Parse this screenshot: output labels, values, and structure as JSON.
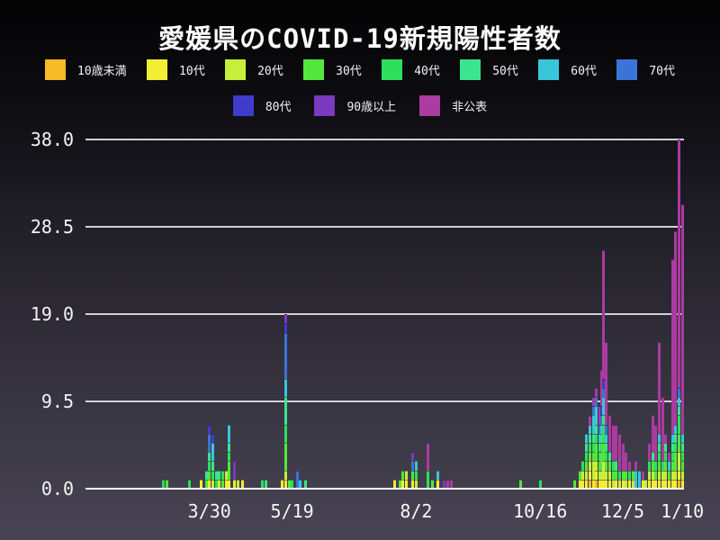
{
  "chart_data": {
    "type": "bar",
    "stacked": true,
    "title": "愛媛県のCOVID-19新規陽性者数",
    "xlabel": "",
    "ylabel": "",
    "grid": true,
    "legend_position": "top",
    "ylim": [
      0,
      38
    ],
    "y_ticks": [
      "0.0",
      "9.5",
      "19.0",
      "28.5",
      "38.0"
    ],
    "x_ticks": [
      {
        "day": 0,
        "label": "3/30"
      },
      {
        "day": 50,
        "label": "5/19"
      },
      {
        "day": 125,
        "label": "8/2"
      },
      {
        "day": 200,
        "label": "10/16"
      },
      {
        "day": 250,
        "label": "12/5"
      },
      {
        "day": 286,
        "label": "1/10"
      }
    ],
    "x_axis_day_range": [
      -75,
      287
    ],
    "age_groups": [
      {
        "label": "10歳未満",
        "color": "#f5bb29"
      },
      {
        "label": "10代",
        "color": "#f2ee35"
      },
      {
        "label": "20代",
        "color": "#c5ef3a"
      },
      {
        "label": "30代",
        "color": "#53e73d"
      },
      {
        "label": "40代",
        "color": "#2edf5d"
      },
      {
        "label": "50代",
        "color": "#3ce48f"
      },
      {
        "label": "60代",
        "color": "#39c6dc"
      },
      {
        "label": "70代",
        "color": "#3c73d6"
      },
      {
        "label": "80代",
        "color": "#3f3bcd"
      },
      {
        "label": "90歳以上",
        "color": "#7b39bd"
      },
      {
        "label": "非公表",
        "color": "#aa3b9f"
      }
    ],
    "legend_rows": [
      [
        0,
        1,
        2,
        3,
        4,
        5,
        6,
        7
      ],
      [
        8,
        9,
        10
      ]
    ],
    "series_order_note": "v arrays follow age_groups order, stacked bottom to top",
    "entries": [
      {
        "day": -28,
        "date": "3/2",
        "v": [
          0,
          0,
          0,
          0,
          1,
          0,
          0,
          0,
          0,
          0,
          0
        ]
      },
      {
        "day": -26,
        "date": "3/4",
        "v": [
          0,
          0,
          0,
          1,
          0,
          0,
          0,
          0,
          0,
          0,
          0
        ]
      },
      {
        "day": -12,
        "date": "3/18",
        "v": [
          0,
          0,
          0,
          0,
          1,
          0,
          0,
          0,
          0,
          0,
          0
        ]
      },
      {
        "day": -5,
        "date": "3/25",
        "v": [
          0,
          1,
          0,
          0,
          0,
          0,
          0,
          0,
          0,
          0,
          0
        ]
      },
      {
        "day": -2,
        "date": "3/28",
        "v": [
          0,
          0,
          0,
          1,
          0,
          1,
          0,
          0,
          0,
          0,
          0
        ]
      },
      {
        "day": 0,
        "date": "3/30",
        "v": [
          0,
          1,
          0,
          1,
          1,
          1,
          0,
          2,
          1,
          0,
          0
        ]
      },
      {
        "day": 2,
        "date": "4/1",
        "v": [
          0,
          0,
          1,
          0,
          1,
          1,
          2,
          0,
          1,
          0,
          0
        ]
      },
      {
        "day": 4,
        "date": "4/3",
        "v": [
          0,
          0,
          0,
          0,
          1,
          1,
          0,
          0,
          0,
          0,
          0
        ]
      },
      {
        "day": 6,
        "date": "4/5",
        "v": [
          0,
          0,
          1,
          0,
          0,
          1,
          0,
          0,
          0,
          0,
          0
        ]
      },
      {
        "day": 8,
        "date": "4/7",
        "v": [
          0,
          0,
          0,
          1,
          1,
          0,
          0,
          0,
          0,
          0,
          0
        ]
      },
      {
        "day": 10,
        "date": "4/9",
        "v": [
          0,
          1,
          1,
          0,
          0,
          0,
          0,
          0,
          0,
          0,
          0
        ]
      },
      {
        "day": 12,
        "date": "4/11",
        "v": [
          0,
          1,
          0,
          2,
          1,
          1,
          2,
          0,
          0,
          0,
          0
        ]
      },
      {
        "day": 15,
        "date": "4/14",
        "v": [
          0,
          1,
          0,
          0,
          0,
          0,
          0,
          0,
          0,
          2,
          0
        ]
      },
      {
        "day": 17,
        "date": "4/16",
        "v": [
          0,
          0,
          1,
          0,
          0,
          0,
          0,
          0,
          0,
          0,
          0
        ]
      },
      {
        "day": 20,
        "date": "4/19",
        "v": [
          0,
          1,
          0,
          0,
          0,
          0,
          0,
          0,
          0,
          0,
          0
        ]
      },
      {
        "day": 32,
        "date": "5/1",
        "v": [
          0,
          0,
          0,
          0,
          1,
          0,
          0,
          0,
          0,
          0,
          0
        ]
      },
      {
        "day": 34,
        "date": "5/3",
        "v": [
          0,
          0,
          0,
          0,
          0,
          1,
          0,
          0,
          0,
          0,
          0
        ]
      },
      {
        "day": 44,
        "date": "5/13",
        "v": [
          0,
          1,
          0,
          0,
          0,
          0,
          0,
          0,
          0,
          0,
          0
        ]
      },
      {
        "day": 46,
        "date": "5/15",
        "v": [
          0,
          1,
          1,
          3,
          2,
          3,
          2,
          5,
          1,
          1,
          0
        ]
      },
      {
        "day": 48,
        "date": "5/17",
        "v": [
          0,
          0,
          0,
          1,
          0,
          0,
          0,
          0,
          0,
          0,
          0
        ]
      },
      {
        "day": 50,
        "date": "5/19",
        "v": [
          0,
          0,
          0,
          0,
          1,
          0,
          0,
          0,
          0,
          0,
          0
        ]
      },
      {
        "day": 53,
        "date": "5/22",
        "v": [
          0,
          0,
          0,
          0,
          0,
          0,
          0,
          2,
          0,
          0,
          0
        ]
      },
      {
        "day": 55,
        "date": "5/24",
        "v": [
          0,
          0,
          0,
          0,
          0,
          0,
          1,
          0,
          0,
          0,
          0
        ]
      },
      {
        "day": 58,
        "date": "5/27",
        "v": [
          0,
          0,
          0,
          0,
          0,
          1,
          0,
          0,
          0,
          0,
          0
        ]
      },
      {
        "day": 112,
        "date": "7/20",
        "v": [
          0,
          1,
          0,
          0,
          0,
          0,
          0,
          0,
          0,
          0,
          0
        ]
      },
      {
        "day": 115,
        "date": "7/23",
        "v": [
          0,
          0,
          0,
          1,
          0,
          0,
          0,
          0,
          0,
          0,
          0
        ]
      },
      {
        "day": 117,
        "date": "7/25",
        "v": [
          0,
          1,
          0,
          1,
          0,
          0,
          0,
          0,
          0,
          0,
          0
        ]
      },
      {
        "day": 119,
        "date": "7/27",
        "v": [
          0,
          1,
          1,
          0,
          0,
          0,
          0,
          0,
          0,
          0,
          0
        ]
      },
      {
        "day": 123,
        "date": "7/31",
        "v": [
          0,
          1,
          0,
          1,
          0,
          0,
          0,
          1,
          0,
          1,
          0
        ]
      },
      {
        "day": 125,
        "date": "8/2",
        "v": [
          0,
          0,
          1,
          0,
          1,
          0,
          1,
          0,
          0,
          0,
          0
        ]
      },
      {
        "day": 132,
        "date": "8/9",
        "v": [
          0,
          0,
          0,
          0,
          2,
          0,
          0,
          0,
          0,
          0,
          3
        ]
      },
      {
        "day": 135,
        "date": "8/12",
        "v": [
          0,
          0,
          0,
          1,
          0,
          0,
          0,
          0,
          0,
          0,
          0
        ]
      },
      {
        "day": 138,
        "date": "8/15",
        "v": [
          0,
          1,
          0,
          0,
          0,
          0,
          1,
          0,
          0,
          0,
          0
        ]
      },
      {
        "day": 142,
        "date": "8/19",
        "v": [
          0,
          0,
          0,
          0,
          0,
          0,
          0,
          0,
          0,
          1,
          0
        ]
      },
      {
        "day": 144,
        "date": "8/21",
        "v": [
          0,
          0,
          0,
          0,
          0,
          0,
          0,
          0,
          0,
          0,
          1
        ]
      },
      {
        "day": 146,
        "date": "8/23",
        "v": [
          0,
          0,
          0,
          0,
          0,
          0,
          0,
          0,
          0,
          0,
          1
        ]
      },
      {
        "day": 188,
        "date": "10/4",
        "v": [
          0,
          0,
          0,
          1,
          0,
          0,
          0,
          0,
          0,
          0,
          0
        ]
      },
      {
        "day": 200,
        "date": "10/16",
        "v": [
          0,
          0,
          0,
          0,
          1,
          0,
          0,
          0,
          0,
          0,
          0
        ]
      },
      {
        "day": 221,
        "date": "11/6",
        "v": [
          0,
          0,
          0,
          1,
          0,
          0,
          0,
          0,
          0,
          0,
          0
        ]
      },
      {
        "day": 224,
        "date": "11/9",
        "v": [
          0,
          1,
          0,
          1,
          0,
          0,
          0,
          0,
          0,
          0,
          0
        ]
      },
      {
        "day": 226,
        "date": "11/11",
        "v": [
          0,
          1,
          1,
          0,
          1,
          0,
          0,
          0,
          0,
          0,
          0
        ]
      },
      {
        "day": 228,
        "date": "11/13",
        "v": [
          0,
          1,
          1,
          1,
          1,
          1,
          1,
          0,
          0,
          0,
          0
        ]
      },
      {
        "day": 230,
        "date": "11/15",
        "v": [
          1,
          1,
          1,
          1,
          1,
          1,
          1,
          0,
          0,
          0,
          1
        ]
      },
      {
        "day": 232,
        "date": "11/17",
        "v": [
          0,
          1,
          2,
          1,
          1,
          1,
          2,
          1,
          0,
          0,
          1
        ]
      },
      {
        "day": 234,
        "date": "11/19",
        "v": [
          1,
          1,
          1,
          2,
          1,
          1,
          2,
          1,
          0,
          0,
          1
        ]
      },
      {
        "day": 236,
        "date": "11/21",
        "v": [
          0,
          1,
          1,
          1,
          1,
          1,
          1,
          1,
          0,
          0,
          2
        ]
      },
      {
        "day": 237,
        "date": "11/22",
        "v": [
          0,
          1,
          1,
          2,
          1,
          1,
          1,
          1,
          1,
          0,
          4
        ]
      },
      {
        "day": 238,
        "date": "11/23",
        "v": [
          0,
          1,
          2,
          2,
          2,
          1,
          2,
          1,
          1,
          0,
          14
        ]
      },
      {
        "day": 240,
        "date": "11/25",
        "v": [
          0,
          1,
          1,
          1,
          1,
          1,
          1,
          1,
          0,
          0,
          9
        ]
      },
      {
        "day": 242,
        "date": "11/27",
        "v": [
          0,
          1,
          1,
          1,
          0,
          1,
          0,
          0,
          0,
          0,
          4
        ]
      },
      {
        "day": 244,
        "date": "11/29",
        "v": [
          0,
          0,
          1,
          1,
          1,
          0,
          0,
          0,
          0,
          0,
          4
        ]
      },
      {
        "day": 246,
        "date": "12/1",
        "v": [
          0,
          1,
          0,
          1,
          0,
          1,
          0,
          0,
          0,
          0,
          4
        ]
      },
      {
        "day": 248,
        "date": "12/3",
        "v": [
          0,
          0,
          1,
          0,
          1,
          0,
          0,
          0,
          0,
          0,
          4
        ]
      },
      {
        "day": 250,
        "date": "12/5",
        "v": [
          0,
          1,
          0,
          1,
          0,
          0,
          0,
          0,
          0,
          0,
          3
        ]
      },
      {
        "day": 252,
        "date": "12/7",
        "v": [
          0,
          0,
          1,
          1,
          0,
          0,
          0,
          0,
          0,
          0,
          2
        ]
      },
      {
        "day": 254,
        "date": "12/9",
        "v": [
          0,
          1,
          0,
          0,
          1,
          0,
          0,
          0,
          0,
          0,
          1
        ]
      },
      {
        "day": 256,
        "date": "12/11",
        "v": [
          0,
          0,
          1,
          1,
          0,
          0,
          0,
          0,
          0,
          0,
          0
        ]
      },
      {
        "day": 258,
        "date": "12/13",
        "v": [
          0,
          0,
          0,
          0,
          0,
          0,
          2,
          0,
          0,
          0,
          1
        ]
      },
      {
        "day": 260,
        "date": "12/15",
        "v": [
          0,
          0,
          0,
          0,
          0,
          0,
          2,
          0,
          0,
          0,
          0
        ]
      },
      {
        "day": 262,
        "date": "12/17",
        "v": [
          0,
          1,
          0,
          0,
          0,
          0,
          0,
          0,
          0,
          0,
          1
        ]
      },
      {
        "day": 264,
        "date": "12/19",
        "v": [
          0,
          0,
          1,
          0,
          0,
          0,
          0,
          0,
          0,
          0,
          0
        ]
      },
      {
        "day": 266,
        "date": "12/21",
        "v": [
          0,
          1,
          1,
          0,
          1,
          0,
          0,
          0,
          0,
          0,
          2
        ]
      },
      {
        "day": 268,
        "date": "12/23",
        "v": [
          0,
          1,
          1,
          1,
          0,
          1,
          0,
          0,
          0,
          0,
          4
        ]
      },
      {
        "day": 270,
        "date": "12/25",
        "v": [
          0,
          1,
          0,
          1,
          1,
          0,
          0,
          0,
          0,
          0,
          4
        ]
      },
      {
        "day": 272,
        "date": "12/27",
        "v": [
          0,
          1,
          1,
          1,
          1,
          1,
          1,
          0,
          0,
          0,
          10
        ]
      },
      {
        "day": 274,
        "date": "12/29",
        "v": [
          0,
          1,
          1,
          0,
          1,
          0,
          0,
          0,
          0,
          0,
          7
        ]
      },
      {
        "day": 276,
        "date": "12/31",
        "v": [
          0,
          1,
          1,
          1,
          1,
          1,
          0,
          0,
          0,
          0,
          1
        ]
      },
      {
        "day": 278,
        "date": "1/2",
        "v": [
          0,
          1,
          0,
          1,
          0,
          0,
          1,
          0,
          0,
          0,
          1
        ]
      },
      {
        "day": 280,
        "date": "1/4",
        "v": [
          0,
          1,
          1,
          1,
          1,
          1,
          1,
          0,
          0,
          0,
          19
        ]
      },
      {
        "day": 282,
        "date": "1/6",
        "v": [
          0,
          1,
          1,
          2,
          1,
          1,
          1,
          0,
          0,
          0,
          21
        ]
      },
      {
        "day": 284,
        "date": "1/8",
        "v": [
          1,
          1,
          2,
          2,
          2,
          1,
          1,
          1,
          0,
          0,
          27
        ]
      },
      {
        "day": 286,
        "date": "1/10",
        "v": [
          0,
          1,
          1,
          1,
          1,
          1,
          1,
          0,
          0,
          0,
          25
        ]
      }
    ]
  },
  "colors": {
    "background_top": "#030304",
    "background_bottom": "#484454",
    "gridline": "#d2d1d9",
    "baseline": "#ffffff",
    "text": "#ffffff"
  }
}
